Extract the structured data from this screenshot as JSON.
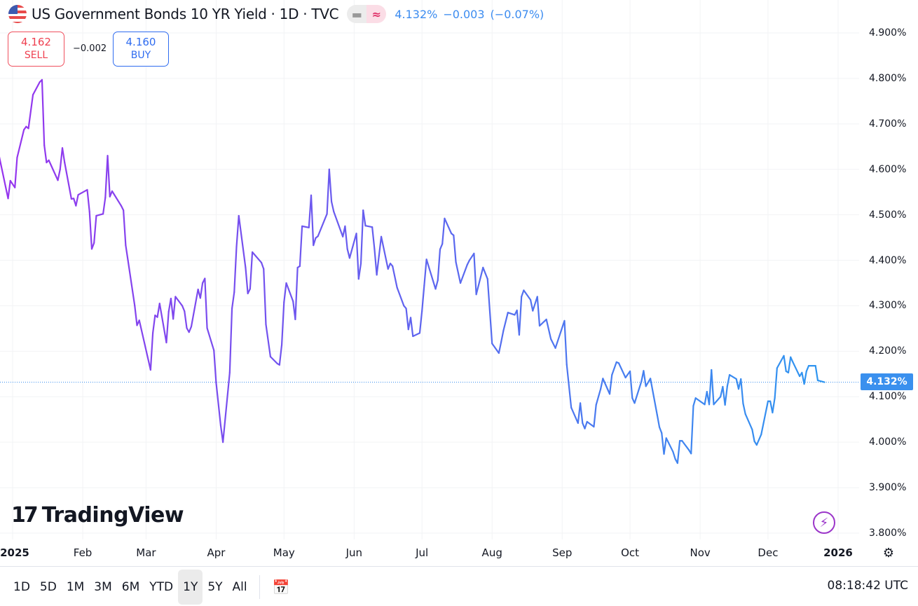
{
  "header": {
    "title": "US Government Bonds 10 YR Yield · 1D · TVC",
    "flag_icon": "us-flag-icon",
    "pill_left_icon": "minus-icon",
    "pill_right_icon": "approx-icon",
    "pill_left_glyph": "▬",
    "pill_right_glyph": "≈",
    "last": "4.132%",
    "change": "−0.003",
    "change_pct": "(−0.07%)"
  },
  "trade": {
    "sell_price": "4.162",
    "sell_label": "SELL",
    "spread": "−0.002",
    "buy_price": "4.160",
    "buy_label": "BUY"
  },
  "price_tag": "4.132%",
  "logo": {
    "mark": "17",
    "text": "TradingView"
  },
  "toolbar": {
    "ranges": [
      "1D",
      "5D",
      "1M",
      "3M",
      "6M",
      "YTD",
      "1Y",
      "5Y",
      "All"
    ],
    "selected": "1Y",
    "calendar_glyph": "📅",
    "clock": "08:18:42 UTC"
  },
  "colors": {
    "line_start": "#9634ee",
    "line_end": "#2e96f0",
    "price_tag": "#3a90ee",
    "sell": "#ef4050",
    "buy": "#2f6cf0"
  },
  "chart_data": {
    "type": "line",
    "title": "US Government Bonds 10 YR Yield",
    "xlabel": "",
    "ylabel": "",
    "ylim": [
      3.8,
      4.9
    ],
    "xlim": [
      "2024-12-26",
      "2026-01-05"
    ],
    "y_ticks": [
      "4.900%",
      "4.800%",
      "4.700%",
      "4.600%",
      "4.500%",
      "4.400%",
      "4.300%",
      "4.200%",
      "4.100%",
      "4.000%",
      "3.900%",
      "3.800%"
    ],
    "y_tick_values": [
      4.9,
      4.8,
      4.7,
      4.6,
      4.5,
      4.4,
      4.3,
      4.2,
      4.1,
      4.0,
      3.9,
      3.8
    ],
    "x_ticks": [
      "2025",
      "Feb",
      "Mar",
      "Apr",
      "May",
      "Jun",
      "Jul",
      "Aug",
      "Sep",
      "Oct",
      "Nov",
      "Dec",
      "2026"
    ],
    "x_tick_dates": [
      "2025-01-01",
      "2025-02-01",
      "2025-03-01",
      "2025-04-01",
      "2025-05-01",
      "2025-06-01",
      "2025-07-01",
      "2025-08-01",
      "2025-09-01",
      "2025-10-01",
      "2025-11-01",
      "2025-12-01",
      "2026-01-01"
    ],
    "grid": true,
    "last_value": 4.132,
    "x": [
      "2024-12-26",
      "2024-12-30",
      "2024-12-31",
      "2025-01-02",
      "2025-01-03",
      "2025-01-06",
      "2025-01-07",
      "2025-01-08",
      "2025-01-10",
      "2025-01-13",
      "2025-01-14",
      "2025-01-15",
      "2025-01-16",
      "2025-01-17",
      "2025-01-21",
      "2025-01-22",
      "2025-01-23",
      "2025-01-24",
      "2025-01-27",
      "2025-01-28",
      "2025-01-29",
      "2025-01-30",
      "2025-02-03",
      "2025-02-04",
      "2025-02-05",
      "2025-02-06",
      "2025-02-07",
      "2025-02-10",
      "2025-02-11",
      "2025-02-12",
      "2025-02-13",
      "2025-02-14",
      "2025-02-18",
      "2025-02-19",
      "2025-02-20",
      "2025-02-21",
      "2025-02-24",
      "2025-02-25",
      "2025-02-26",
      "2025-03-03",
      "2025-03-04",
      "2025-03-05",
      "2025-03-06",
      "2025-03-07",
      "2025-03-10",
      "2025-03-11",
      "2025-03-12",
      "2025-03-13",
      "2025-03-14",
      "2025-03-17",
      "2025-03-18",
      "2025-03-19",
      "2025-03-20",
      "2025-03-21",
      "2025-03-24",
      "2025-03-25",
      "2025-03-26",
      "2025-03-27",
      "2025-03-28",
      "2025-03-31",
      "2025-04-01",
      "2025-04-03",
      "2025-04-04",
      "2025-04-07",
      "2025-04-08",
      "2025-04-09",
      "2025-04-10",
      "2025-04-11",
      "2025-04-14",
      "2025-04-15",
      "2025-04-16",
      "2025-04-17",
      "2025-04-21",
      "2025-04-22",
      "2025-04-23",
      "2025-04-25",
      "2025-04-28",
      "2025-04-29",
      "2025-04-30",
      "2025-05-01",
      "2025-05-02",
      "2025-05-05",
      "2025-05-06",
      "2025-05-07",
      "2025-05-08",
      "2025-05-09",
      "2025-05-12",
      "2025-05-13",
      "2025-05-14",
      "2025-05-15",
      "2025-05-16",
      "2025-05-20",
      "2025-05-21",
      "2025-05-22",
      "2025-05-23",
      "2025-05-27",
      "2025-05-28",
      "2025-05-29",
      "2025-05-30",
      "2025-06-02",
      "2025-06-03",
      "2025-06-04",
      "2025-06-05",
      "2025-06-06",
      "2025-06-09",
      "2025-06-10",
      "2025-06-11",
      "2025-06-12",
      "2025-06-13",
      "2025-06-16",
      "2025-06-17",
      "2025-06-18",
      "2025-06-20",
      "2025-06-23",
      "2025-06-24",
      "2025-06-25",
      "2025-06-26",
      "2025-06-27",
      "2025-06-30",
      "2025-07-01",
      "2025-07-02",
      "2025-07-03",
      "2025-07-07",
      "2025-07-08",
      "2025-07-09",
      "2025-07-10",
      "2025-07-11",
      "2025-07-14",
      "2025-07-15",
      "2025-07-16",
      "2025-07-18",
      "2025-07-21",
      "2025-07-22",
      "2025-07-24",
      "2025-07-25",
      "2025-07-28",
      "2025-07-30",
      "2025-08-01",
      "2025-08-04",
      "2025-08-05",
      "2025-08-06",
      "2025-08-08",
      "2025-08-11",
      "2025-08-12",
      "2025-08-13",
      "2025-08-14",
      "2025-08-15",
      "2025-08-18",
      "2025-08-19",
      "2025-08-21",
      "2025-08-22",
      "2025-08-25",
      "2025-08-27",
      "2025-08-29",
      "2025-09-02",
      "2025-09-03",
      "2025-09-05",
      "2025-09-08",
      "2025-09-09",
      "2025-09-10",
      "2025-09-11",
      "2025-09-12",
      "2025-09-15",
      "2025-09-16",
      "2025-09-18",
      "2025-09-19",
      "2025-09-22",
      "2025-09-23",
      "2025-09-25",
      "2025-09-26",
      "2025-09-29",
      "2025-10-01",
      "2025-10-02",
      "2025-10-03",
      "2025-10-06",
      "2025-10-07",
      "2025-10-08",
      "2025-10-10",
      "2025-10-13",
      "2025-10-14",
      "2025-10-15",
      "2025-10-16",
      "2025-10-17",
      "2025-10-20",
      "2025-10-21",
      "2025-10-22",
      "2025-10-23",
      "2025-10-24",
      "2025-10-27",
      "2025-10-28",
      "2025-10-29",
      "2025-10-30",
      "2025-11-03",
      "2025-11-04",
      "2025-11-05",
      "2025-11-06",
      "2025-11-07",
      "2025-11-10",
      "2025-11-11",
      "2025-11-12",
      "2025-11-13",
      "2025-11-14",
      "2025-11-17",
      "2025-11-18",
      "2025-11-19",
      "2025-11-20",
      "2025-11-21",
      "2025-11-24",
      "2025-11-25",
      "2025-11-26",
      "2025-11-28",
      "2025-12-01",
      "2025-12-02",
      "2025-12-03",
      "2025-12-04",
      "2025-12-05",
      "2025-12-08",
      "2025-12-09",
      "2025-12-10",
      "2025-12-11",
      "2025-12-12",
      "2025-12-15",
      "2025-12-16",
      "2025-12-17",
      "2025-12-18",
      "2025-12-19",
      "2025-12-22",
      "2025-12-23",
      "2025-12-26"
    ],
    "y": [
      4.63,
      4.536,
      4.575,
      4.56,
      4.626,
      4.687,
      4.694,
      4.69,
      4.764,
      4.792,
      4.797,
      4.653,
      4.615,
      4.62,
      4.576,
      4.6,
      4.647,
      4.615,
      4.535,
      4.536,
      4.52,
      4.544,
      4.555,
      4.507,
      4.425,
      4.438,
      4.498,
      4.502,
      4.538,
      4.63,
      4.54,
      4.552,
      4.52,
      4.51,
      4.433,
      4.4,
      4.3,
      4.257,
      4.268,
      4.159,
      4.24,
      4.279,
      4.275,
      4.305,
      4.219,
      4.287,
      4.316,
      4.271,
      4.32,
      4.3,
      4.288,
      4.251,
      4.242,
      4.254,
      4.336,
      4.317,
      4.35,
      4.36,
      4.251,
      4.202,
      4.13,
      4.037,
      4.0,
      4.153,
      4.294,
      4.33,
      4.43,
      4.498,
      4.384,
      4.327,
      4.337,
      4.418,
      4.395,
      4.381,
      4.259,
      4.188,
      4.173,
      4.17,
      4.214,
      4.308,
      4.35,
      4.31,
      4.27,
      4.384,
      4.387,
      4.475,
      4.472,
      4.543,
      4.433,
      4.449,
      4.453,
      4.502,
      4.6,
      4.529,
      4.507,
      4.452,
      4.475,
      4.425,
      4.405,
      4.459,
      4.359,
      4.393,
      4.51,
      4.476,
      4.473,
      4.425,
      4.368,
      4.41,
      4.452,
      4.381,
      4.393,
      4.387,
      4.34,
      4.3,
      4.294,
      4.248,
      4.274,
      4.233,
      4.24,
      4.288,
      4.345,
      4.402,
      4.337,
      4.356,
      4.424,
      4.436,
      4.492,
      4.459,
      4.455,
      4.396,
      4.35,
      4.39,
      4.4,
      4.415,
      4.325,
      4.384,
      4.359,
      4.217,
      4.196,
      4.22,
      4.245,
      4.285,
      4.28,
      4.29,
      4.236,
      4.32,
      4.334,
      4.313,
      4.289,
      4.32,
      4.256,
      4.27,
      4.227,
      4.207,
      4.267,
      4.171,
      4.076,
      4.042,
      4.086,
      4.042,
      4.03,
      4.045,
      4.034,
      4.082,
      4.117,
      4.14,
      4.106,
      4.148,
      4.176,
      4.174,
      4.142,
      4.156,
      4.097,
      4.086,
      4.133,
      4.157,
      4.123,
      4.14,
      4.06,
      4.033,
      4.02,
      3.974,
      4.009,
      3.979,
      3.963,
      3.954,
      4.003,
      4.003,
      3.983,
      3.975,
      4.08,
      4.097,
      4.083,
      4.111,
      4.083,
      4.159,
      4.083,
      4.1,
      4.122,
      4.082,
      4.123,
      4.148,
      4.139,
      4.117,
      4.139,
      4.085,
      4.062,
      4.028,
      4.002,
      3.994,
      4.017,
      4.09,
      4.09,
      4.065,
      4.097,
      4.163,
      4.19,
      4.156,
      4.153,
      4.187,
      4.176,
      4.145,
      4.153,
      4.128,
      4.156,
      4.168,
      4.168,
      4.136,
      4.132
    ]
  }
}
